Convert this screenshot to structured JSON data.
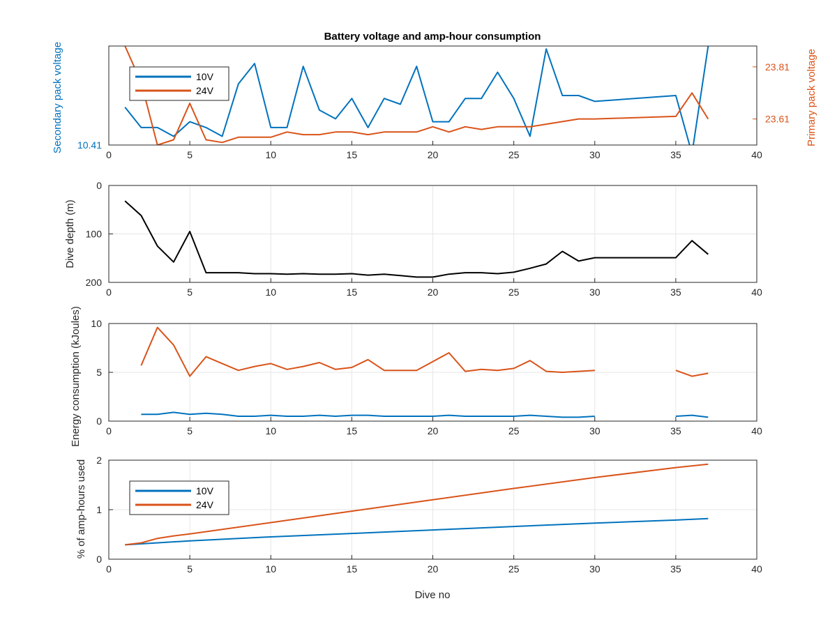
{
  "figure": {
    "title": "Battery voltage and amp-hour consumption"
  },
  "colors": {
    "blue": "#0072bd",
    "orange": "#d95319",
    "black": "#000000",
    "grid": "#e6e6e6",
    "axis": "#262626"
  },
  "chart_data": [
    {
      "type": "line",
      "title": "Battery voltage and amp-hour consumption",
      "xlabel": "",
      "ylabel_left": "Secondary pack voltage",
      "ylabel_right": "Primary pack voltage",
      "xlim": [
        0,
        40
      ],
      "xticks": [
        "0",
        "5",
        "10",
        "15",
        "20",
        "25",
        "30",
        "35",
        "40"
      ],
      "yticks_left": [
        "10.41"
      ],
      "yticks_right": [
        "23.61",
        "23.81"
      ],
      "grid": false,
      "legend": {
        "position": "top-left",
        "entries": [
          "10V",
          "24V"
        ]
      },
      "series": [
        {
          "name": "10V",
          "axis": "left",
          "color": "#0072bd",
          "x": [
            1,
            2,
            3,
            4,
            5,
            6,
            7,
            8,
            9,
            10,
            11,
            12,
            13,
            14,
            15,
            16,
            17,
            18,
            19,
            20,
            21,
            22,
            23,
            24,
            25,
            26,
            27,
            28,
            29,
            30,
            35,
            36,
            37
          ],
          "y": [
            10.54,
            10.47,
            10.47,
            10.44,
            10.49,
            10.47,
            10.44,
            10.62,
            10.69,
            10.47,
            10.47,
            10.68,
            10.53,
            10.5,
            10.57,
            10.47,
            10.57,
            10.55,
            10.68,
            10.49,
            10.49,
            10.57,
            10.57,
            10.66,
            10.57,
            10.44,
            10.74,
            10.58,
            10.58,
            10.56,
            10.58,
            10.38,
            10.75
          ]
        },
        {
          "name": "24V",
          "axis": "right",
          "color": "#d95319",
          "x": [
            1,
            2,
            3,
            4,
            5,
            6,
            7,
            8,
            9,
            10,
            11,
            12,
            13,
            14,
            15,
            16,
            17,
            18,
            19,
            20,
            21,
            22,
            23,
            24,
            25,
            26,
            27,
            28,
            29,
            30,
            35,
            36,
            37
          ],
          "y": [
            23.89,
            23.75,
            23.51,
            23.53,
            23.67,
            23.53,
            23.52,
            23.54,
            23.54,
            23.54,
            23.56,
            23.55,
            23.55,
            23.56,
            23.56,
            23.55,
            23.56,
            23.56,
            23.56,
            23.58,
            23.56,
            23.58,
            23.57,
            23.58,
            23.58,
            23.58,
            23.59,
            23.6,
            23.61,
            23.61,
            23.62,
            23.71,
            23.61
          ]
        }
      ]
    },
    {
      "type": "line",
      "xlabel": "",
      "ylabel": "Dive depth (m)",
      "xlim": [
        0,
        40
      ],
      "ylim": [
        0,
        200
      ],
      "y_reversed": true,
      "xticks": [
        "0",
        "5",
        "10",
        "15",
        "20",
        "25",
        "30",
        "35",
        "40"
      ],
      "yticks": [
        "0",
        "100",
        "200"
      ],
      "grid": true,
      "series": [
        {
          "color": "#000000",
          "x": [
            1,
            2,
            3,
            4,
            5,
            6,
            7,
            8,
            9,
            10,
            11,
            12,
            13,
            14,
            15,
            16,
            17,
            18,
            19,
            20,
            21,
            22,
            23,
            24,
            25,
            26,
            27,
            28,
            29,
            30,
            35,
            36,
            37
          ],
          "y": [
            32,
            62,
            125,
            158,
            95,
            180,
            180,
            180,
            182,
            182,
            183,
            182,
            183,
            183,
            182,
            185,
            183,
            186,
            189,
            189,
            183,
            180,
            180,
            182,
            179,
            171,
            162,
            136,
            156,
            149,
            149,
            114,
            142
          ]
        }
      ]
    },
    {
      "type": "line",
      "xlabel": "",
      "ylabel": "Energy consumption (kJoules)",
      "xlim": [
        0,
        40
      ],
      "ylim": [
        0,
        10
      ],
      "xticks": [
        "0",
        "5",
        "10",
        "15",
        "20",
        "25",
        "30",
        "35",
        "40"
      ],
      "yticks": [
        "0",
        "5",
        "10"
      ],
      "grid": true,
      "series": [
        {
          "color": "#d95319",
          "segments": [
            {
              "x": [
                2,
                3,
                4,
                5,
                6,
                7,
                8,
                9,
                10,
                11,
                12,
                13,
                14,
                15,
                16,
                17,
                18,
                19,
                20,
                21,
                22,
                23,
                24,
                25,
                26,
                27,
                28,
                29,
                30
              ],
              "y": [
                5.7,
                9.6,
                7.8,
                4.6,
                6.6,
                5.9,
                5.2,
                5.6,
                5.9,
                5.3,
                5.6,
                6.0,
                5.3,
                5.5,
                6.3,
                5.2,
                5.2,
                5.2,
                6.1,
                7.0,
                5.1,
                5.3,
                5.2,
                5.4,
                6.2,
                5.1,
                5.0,
                5.1,
                5.2
              ]
            },
            {
              "x": [
                35,
                36,
                37
              ],
              "y": [
                5.2,
                4.6,
                4.9
              ]
            }
          ]
        },
        {
          "color": "#0072bd",
          "segments": [
            {
              "x": [
                2,
                3,
                4,
                5,
                6,
                7,
                8,
                9,
                10,
                11,
                12,
                13,
                14,
                15,
                16,
                17,
                18,
                19,
                20,
                21,
                22,
                23,
                24,
                25,
                26,
                27,
                28,
                29,
                30
              ],
              "y": [
                0.7,
                0.7,
                0.9,
                0.7,
                0.8,
                0.7,
                0.5,
                0.5,
                0.6,
                0.5,
                0.5,
                0.6,
                0.5,
                0.6,
                0.6,
                0.5,
                0.5,
                0.5,
                0.5,
                0.6,
                0.5,
                0.5,
                0.5,
                0.5,
                0.6,
                0.5,
                0.4,
                0.4,
                0.5
              ]
            },
            {
              "x": [
                35,
                36,
                37
              ],
              "y": [
                0.5,
                0.6,
                0.4
              ]
            }
          ]
        }
      ]
    },
    {
      "type": "line",
      "xlabel": "Dive no",
      "ylabel": "% of amp-hours used",
      "xlim": [
        0,
        40
      ],
      "ylim": [
        0,
        2
      ],
      "xticks": [
        "0",
        "5",
        "10",
        "15",
        "20",
        "25",
        "30",
        "35",
        "40"
      ],
      "yticks": [
        "0",
        "1",
        "2"
      ],
      "grid": true,
      "legend": {
        "position": "top-left",
        "entries": [
          "10V",
          "24V"
        ]
      },
      "series": [
        {
          "name": "10V",
          "color": "#0072bd",
          "x": [
            1,
            2,
            5,
            10,
            15,
            20,
            25,
            30,
            35,
            37
          ],
          "y": [
            0.29,
            0.31,
            0.37,
            0.45,
            0.52,
            0.59,
            0.66,
            0.73,
            0.79,
            0.82
          ]
        },
        {
          "name": "24V",
          "color": "#d95319",
          "x": [
            1,
            2,
            3,
            4,
            5,
            10,
            15,
            20,
            25,
            30,
            35,
            37
          ],
          "y": [
            0.29,
            0.33,
            0.42,
            0.47,
            0.51,
            0.74,
            0.97,
            1.2,
            1.43,
            1.65,
            1.85,
            1.92
          ]
        }
      ]
    }
  ]
}
